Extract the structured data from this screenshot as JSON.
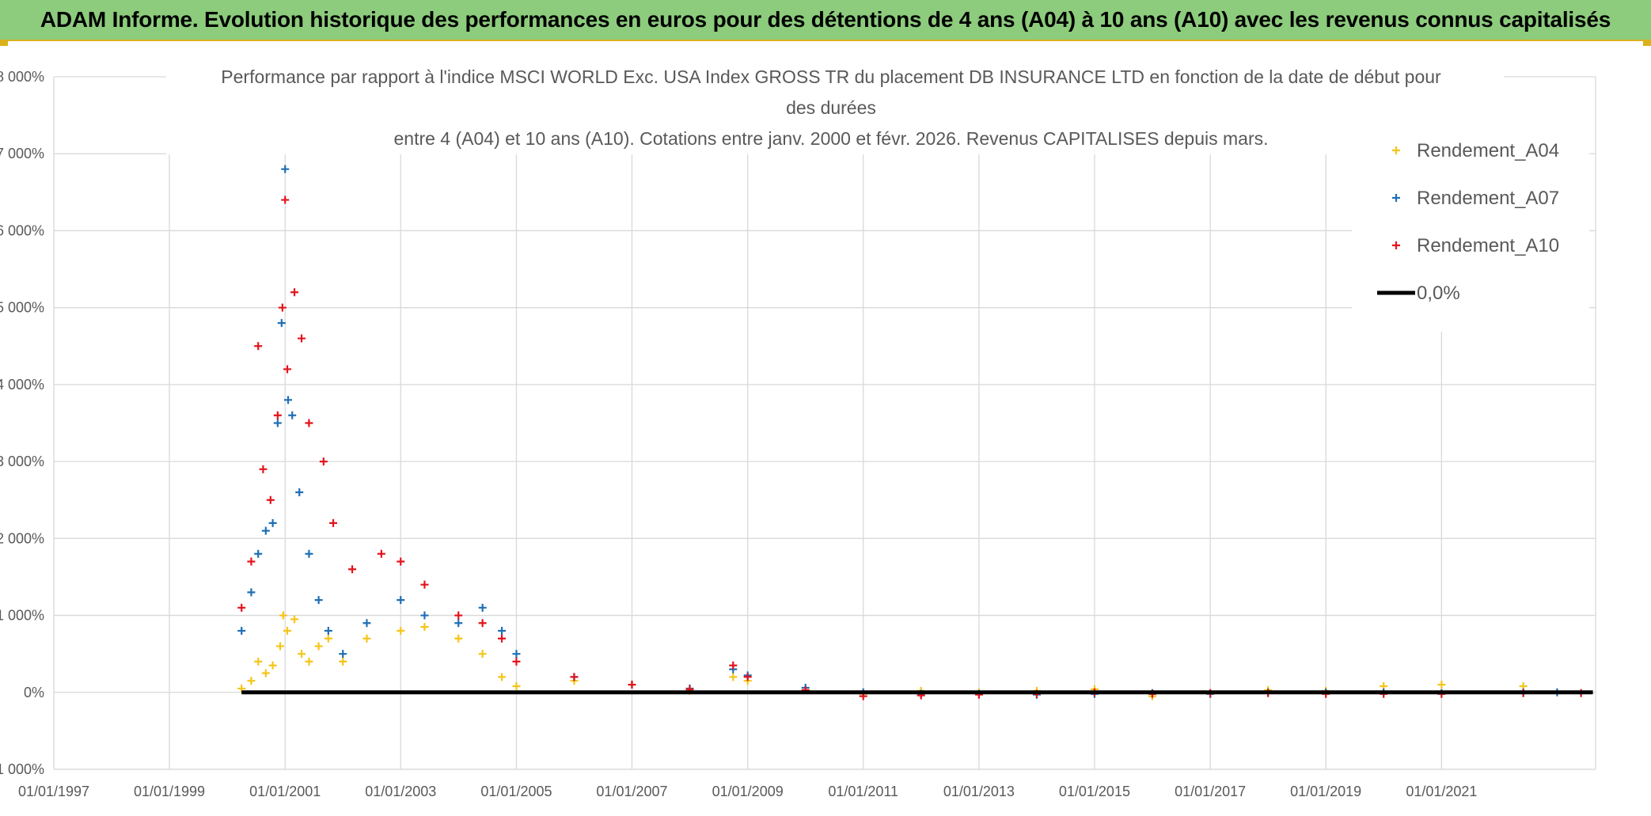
{
  "banner": {
    "title": "ADAM Informe. Evolution historique des performances en euros pour des détentions de 4 ans (A04) à 10 ans (A10) avec les revenus connus capitalisés"
  },
  "colors": {
    "banner_bg": "#8ccc7c",
    "accent": "#d9b21b",
    "A04": "#f5c518",
    "A07": "#1f6fb5",
    "A10": "#e3141c",
    "zero_line": "#000000",
    "grid": "#d9d9d9"
  },
  "chart_data": {
    "type": "scatter",
    "title_lines": [
      "Performance par rapport à l'indice MSCI WORLD Exc. USA Index GROSS TR  du placement DB INSURANCE LTD en fonction de la date de début pour",
      "des durées",
      "entre 4 (A04) et 10 ans (A10). Cotations entre janv. 2000 et févr. 2026. Revenus CAPITALISES depuis mars."
    ],
    "xlabel": "",
    "ylabel": "",
    "x_is_date": true,
    "xlim": [
      "1997-01-01",
      "2023-09-01"
    ],
    "ylim": [
      -1000,
      8000
    ],
    "y_unit": "%",
    "x_tick_labels": [
      "01/01/1997",
      "01/01/1999",
      "01/01/2001",
      "01/01/2003",
      "01/01/2005",
      "01/01/2007",
      "01/01/2009",
      "01/01/2011",
      "01/01/2013",
      "01/01/2015",
      "01/01/2017",
      "01/01/2019",
      "01/01/2021"
    ],
    "y_tick_labels": [
      "-1 000%",
      "0%",
      "1 000%",
      "2 000%",
      "3 000%",
      "4 000%",
      "5 000%",
      "6 000%",
      "7 000%",
      "8 000%"
    ],
    "y_tick_values": [
      -1000,
      0,
      1000,
      2000,
      3000,
      4000,
      5000,
      6000,
      7000,
      8000
    ],
    "grid": true,
    "legend_position": "top-right",
    "series": [
      {
        "name": "Rendement_A04",
        "marker": "plus",
        "points": [
          [
            "2000-04-01",
            50
          ],
          [
            "2000-06-01",
            150
          ],
          [
            "2000-07-15",
            400
          ],
          [
            "2000-09-01",
            250
          ],
          [
            "2000-10-15",
            350
          ],
          [
            "2000-12-01",
            600
          ],
          [
            "2000-12-20",
            1000
          ],
          [
            "2001-01-15",
            800
          ],
          [
            "2001-03-01",
            950
          ],
          [
            "2001-04-15",
            500
          ],
          [
            "2001-06-01",
            400
          ],
          [
            "2001-08-01",
            600
          ],
          [
            "2001-10-01",
            700
          ],
          [
            "2002-01-01",
            400
          ],
          [
            "2002-06-01",
            700
          ],
          [
            "2003-01-01",
            800
          ],
          [
            "2003-06-01",
            850
          ],
          [
            "2004-01-01",
            700
          ],
          [
            "2004-06-01",
            500
          ],
          [
            "2004-10-01",
            200
          ],
          [
            "2005-01-01",
            80
          ],
          [
            "2006-01-01",
            150
          ],
          [
            "2007-01-01",
            100
          ],
          [
            "2008-01-01",
            20
          ],
          [
            "2008-10-01",
            200
          ],
          [
            "2009-01-01",
            150
          ],
          [
            "2010-01-01",
            30
          ],
          [
            "2011-01-01",
            -20
          ],
          [
            "2012-01-01",
            20
          ],
          [
            "2013-01-01",
            0
          ],
          [
            "2014-01-01",
            20
          ],
          [
            "2015-01-01",
            40
          ],
          [
            "2016-01-01",
            -50
          ],
          [
            "2017-01-01",
            -20
          ],
          [
            "2018-01-01",
            30
          ],
          [
            "2019-01-01",
            20
          ],
          [
            "2020-01-01",
            80
          ],
          [
            "2021-01-01",
            100
          ],
          [
            "2022-06-01",
            80
          ]
        ]
      },
      {
        "name": "Rendement_A07",
        "marker": "plus",
        "points": [
          [
            "2000-04-01",
            800
          ],
          [
            "2000-06-01",
            1300
          ],
          [
            "2000-07-15",
            1800
          ],
          [
            "2000-09-01",
            2100
          ],
          [
            "2000-10-15",
            2200
          ],
          [
            "2000-11-15",
            3500
          ],
          [
            "2000-12-10",
            4800
          ],
          [
            "2001-01-01",
            6800
          ],
          [
            "2001-01-20",
            3800
          ],
          [
            "2001-02-15",
            3600
          ],
          [
            "2001-04-01",
            2600
          ],
          [
            "2001-06-01",
            1800
          ],
          [
            "2001-08-01",
            1200
          ],
          [
            "2001-10-01",
            800
          ],
          [
            "2002-01-01",
            500
          ],
          [
            "2002-06-01",
            900
          ],
          [
            "2003-01-01",
            1200
          ],
          [
            "2003-06-01",
            1000
          ],
          [
            "2004-01-01",
            900
          ],
          [
            "2004-06-01",
            1100
          ],
          [
            "2004-10-01",
            800
          ],
          [
            "2005-01-01",
            500
          ],
          [
            "2006-01-01",
            200
          ],
          [
            "2007-01-01",
            100
          ],
          [
            "2008-01-01",
            50
          ],
          [
            "2008-10-01",
            300
          ],
          [
            "2009-01-01",
            220
          ],
          [
            "2010-01-01",
            60
          ],
          [
            "2011-01-01",
            0
          ],
          [
            "2012-01-01",
            -20
          ],
          [
            "2013-01-01",
            -20
          ],
          [
            "2014-01-01",
            -30
          ],
          [
            "2015-01-01",
            -20
          ],
          [
            "2016-01-01",
            -10
          ],
          [
            "2017-01-01",
            -20
          ],
          [
            "2018-01-01",
            0
          ],
          [
            "2019-01-01",
            0
          ],
          [
            "2020-01-01",
            0
          ],
          [
            "2021-01-01",
            -10
          ],
          [
            "2022-06-01",
            0
          ],
          [
            "2023-01-01",
            0
          ]
        ]
      },
      {
        "name": "Rendement_A10",
        "marker": "plus",
        "points": [
          [
            "2000-04-01",
            1100
          ],
          [
            "2000-06-01",
            1700
          ],
          [
            "2000-07-15",
            4500
          ],
          [
            "2000-08-15",
            2900
          ],
          [
            "2000-10-01",
            2500
          ],
          [
            "2000-11-15",
            3600
          ],
          [
            "2000-12-15",
            5000
          ],
          [
            "2001-01-01",
            6400
          ],
          [
            "2001-01-15",
            4200
          ],
          [
            "2001-03-01",
            5200
          ],
          [
            "2001-04-15",
            4600
          ],
          [
            "2001-06-01",
            3500
          ],
          [
            "2001-09-01",
            3000
          ],
          [
            "2001-11-01",
            2200
          ],
          [
            "2002-03-01",
            1600
          ],
          [
            "2002-09-01",
            1800
          ],
          [
            "2003-01-01",
            1700
          ],
          [
            "2003-06-01",
            1400
          ],
          [
            "2004-01-01",
            1000
          ],
          [
            "2004-06-01",
            900
          ],
          [
            "2004-10-01",
            700
          ],
          [
            "2005-01-01",
            400
          ],
          [
            "2006-01-01",
            200
          ],
          [
            "2007-01-01",
            100
          ],
          [
            "2008-01-01",
            40
          ],
          [
            "2008-10-01",
            350
          ],
          [
            "2009-01-01",
            200
          ],
          [
            "2010-01-01",
            30
          ],
          [
            "2011-01-01",
            -50
          ],
          [
            "2012-01-01",
            -40
          ],
          [
            "2013-01-01",
            -30
          ],
          [
            "2014-01-01",
            -20
          ],
          [
            "2015-01-01",
            0
          ],
          [
            "2016-01-01",
            -20
          ],
          [
            "2017-01-01",
            -10
          ],
          [
            "2018-01-01",
            -10
          ],
          [
            "2019-01-01",
            -20
          ],
          [
            "2020-01-01",
            -20
          ],
          [
            "2021-01-01",
            -20
          ],
          [
            "2022-06-01",
            -10
          ],
          [
            "2023-06-01",
            -10
          ]
        ]
      },
      {
        "name": "0,0%",
        "marker": "line",
        "points": [
          [
            "2000-04-01",
            0
          ],
          [
            "2023-08-15",
            0
          ]
        ]
      }
    ]
  }
}
